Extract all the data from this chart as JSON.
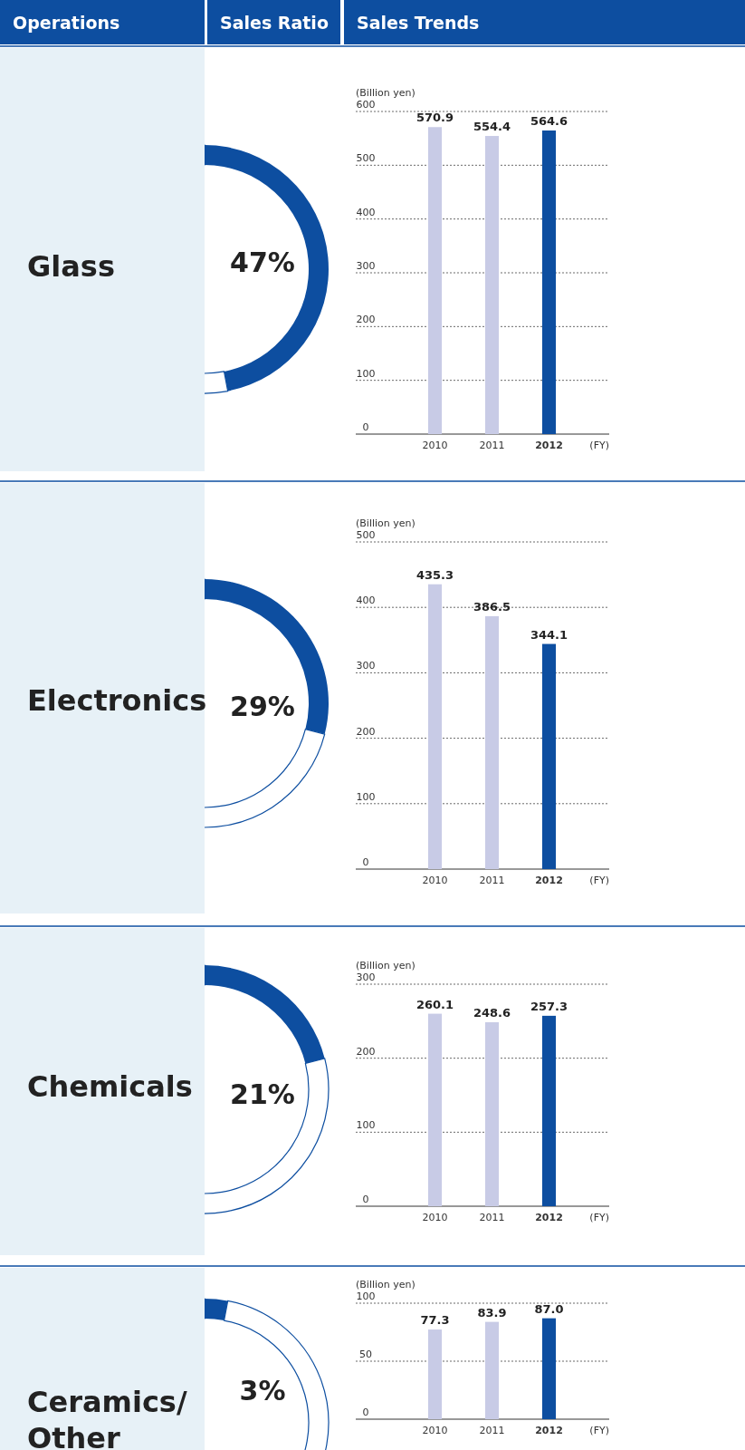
{
  "chart_data": [
    {
      "type": "other",
      "annotations": [
        "Operations",
        "Sales Ratio",
        "Sales Trends"
      ]
    },
    {
      "type": "donut",
      "title": "Glass",
      "categories": [
        null,
        null
      ],
      "values": [
        47,
        53
      ],
      "colors": [
        "#0d4ea0",
        "#ffffff"
      ],
      "annotations": [
        "47%"
      ]
    },
    {
      "type": "bar",
      "ylabel": "(Billion yen)",
      "xlabel": "(FY)",
      "categories": [
        "2010",
        "2011",
        "2012"
      ],
      "values": [
        570.9,
        554.4,
        564.6
      ],
      "colors": [
        "#c8cbe6",
        "#c8cbe6",
        "#0d4ea0"
      ],
      "value_labels": [
        "570.9",
        "554.4",
        "564.6"
      ],
      "ylim": [
        0,
        600
      ],
      "yticks": [
        0,
        100,
        200,
        300,
        400,
        500,
        600
      ],
      "grid": "y"
    },
    {
      "type": "donut",
      "title": "Electronics",
      "categories": [
        null,
        null
      ],
      "values": [
        29,
        71
      ],
      "colors": [
        "#0d4ea0",
        "#ffffff"
      ],
      "annotations": [
        "29%"
      ]
    },
    {
      "type": "bar",
      "ylabel": "(Billion yen)",
      "xlabel": "(FY)",
      "categories": [
        "2010",
        "2011",
        "2012"
      ],
      "values": [
        435.3,
        386.5,
        344.1
      ],
      "colors": [
        "#c8cbe6",
        "#c8cbe6",
        "#0d4ea0"
      ],
      "value_labels": [
        "435.3",
        "386.5",
        "344.1"
      ],
      "ylim": [
        0,
        500
      ],
      "yticks": [
        0,
        100,
        200,
        300,
        400,
        500
      ],
      "grid": "y"
    },
    {
      "type": "donut",
      "title": "Chemicals",
      "categories": [
        null,
        null
      ],
      "values": [
        21,
        79
      ],
      "colors": [
        "#0d4ea0",
        "#ffffff"
      ],
      "annotations": [
        "21%"
      ]
    },
    {
      "type": "bar",
      "ylabel": "(Billion yen)",
      "xlabel": "(FY)",
      "categories": [
        "2010",
        "2011",
        "2012"
      ],
      "values": [
        260.1,
        248.6,
        257.3
      ],
      "colors": [
        "#c8cbe6",
        "#c8cbe6",
        "#0d4ea0"
      ],
      "value_labels": [
        "260.1",
        "248.6",
        "257.3"
      ],
      "ylim": [
        0,
        300
      ],
      "yticks": [
        0,
        100,
        200,
        300
      ],
      "grid": "y"
    },
    {
      "type": "donut",
      "title": "Ceramics/Other",
      "categories": [
        null,
        null
      ],
      "values": [
        3,
        97
      ],
      "colors": [
        "#0d4ea0",
        "#ffffff"
      ],
      "annotations": [
        "3%"
      ]
    },
    {
      "type": "bar",
      "ylabel": "(Billion yen)",
      "xlabel": "(FY)",
      "categories": [
        "2010",
        "2011",
        "2012"
      ],
      "values": [
        77.3,
        83.9,
        87.0
      ],
      "colors": [
        "#c8cbe6",
        "#c8cbe6",
        "#0d4ea0"
      ],
      "value_labels": [
        "77.3",
        "83.9",
        "87.0"
      ],
      "ylim": [
        0,
        100
      ],
      "yticks": [
        0,
        50,
        100
      ],
      "grid": "y"
    }
  ]
}
